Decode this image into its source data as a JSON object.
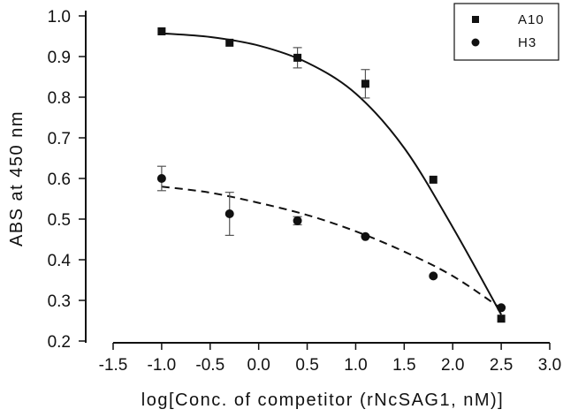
{
  "chart_data": {
    "type": "scatter",
    "title": "",
    "xlabel": "log[Conc. of competitor (rNcSAG1, nM)]",
    "ylabel": "ABS at 450 nm",
    "xlim": [
      -1.5,
      3.0
    ],
    "ylim": [
      0.2,
      1.0
    ],
    "x_ticks": [
      -1.5,
      -1.0,
      -0.5,
      0.0,
      0.5,
      1.0,
      1.5,
      2.0,
      2.5,
      3.0
    ],
    "x_tick_labels": [
      "-1.5",
      "-1.0",
      "-0.5",
      "0.0",
      "0.5",
      "1.0",
      "1.5",
      "2.0",
      "2.5",
      "3.0"
    ],
    "y_ticks": [
      0.2,
      0.3,
      0.4,
      0.5,
      0.6,
      0.7,
      0.8,
      0.9,
      1.0
    ],
    "y_tick_labels": [
      "0.2",
      "0.3",
      "0.4",
      "0.5",
      "0.6",
      "0.7",
      "0.8",
      "0.9",
      "1.0"
    ],
    "grid": false,
    "legend_position": "top-right",
    "series": [
      {
        "name": "A10",
        "marker": "square",
        "line_style": "solid",
        "x": [
          -1.0,
          -0.3,
          0.4,
          1.1,
          1.8,
          2.5
        ],
        "y": [
          0.962,
          0.934,
          0.897,
          0.833,
          0.597,
          0.255
        ],
        "err": [
          0.005,
          0.005,
          0.025,
          0.035,
          0.005,
          0.005
        ],
        "fit_x": [
          -1.0,
          -0.5,
          0.0,
          0.5,
          1.0,
          1.5,
          2.0,
          2.5
        ],
        "fit_y": [
          0.957,
          0.948,
          0.927,
          0.885,
          0.809,
          0.675,
          0.48,
          0.265
        ]
      },
      {
        "name": "H3",
        "marker": "circle",
        "line_style": "dashed",
        "x": [
          -1.0,
          -0.3,
          0.4,
          1.1,
          1.8,
          2.5
        ],
        "y": [
          0.6,
          0.513,
          0.496,
          0.457,
          0.36,
          0.282
        ],
        "err": [
          0.03,
          0.053,
          0.01,
          0.005,
          0.005,
          0.005
        ],
        "fit_x": [
          -1.0,
          -0.5,
          0.0,
          0.5,
          1.0,
          1.5,
          2.0,
          2.5
        ],
        "fit_y": [
          0.58,
          0.565,
          0.54,
          0.51,
          0.47,
          0.42,
          0.36,
          0.28
        ]
      }
    ],
    "colors": {
      "marker": "#111111",
      "axis": "#111111"
    }
  }
}
